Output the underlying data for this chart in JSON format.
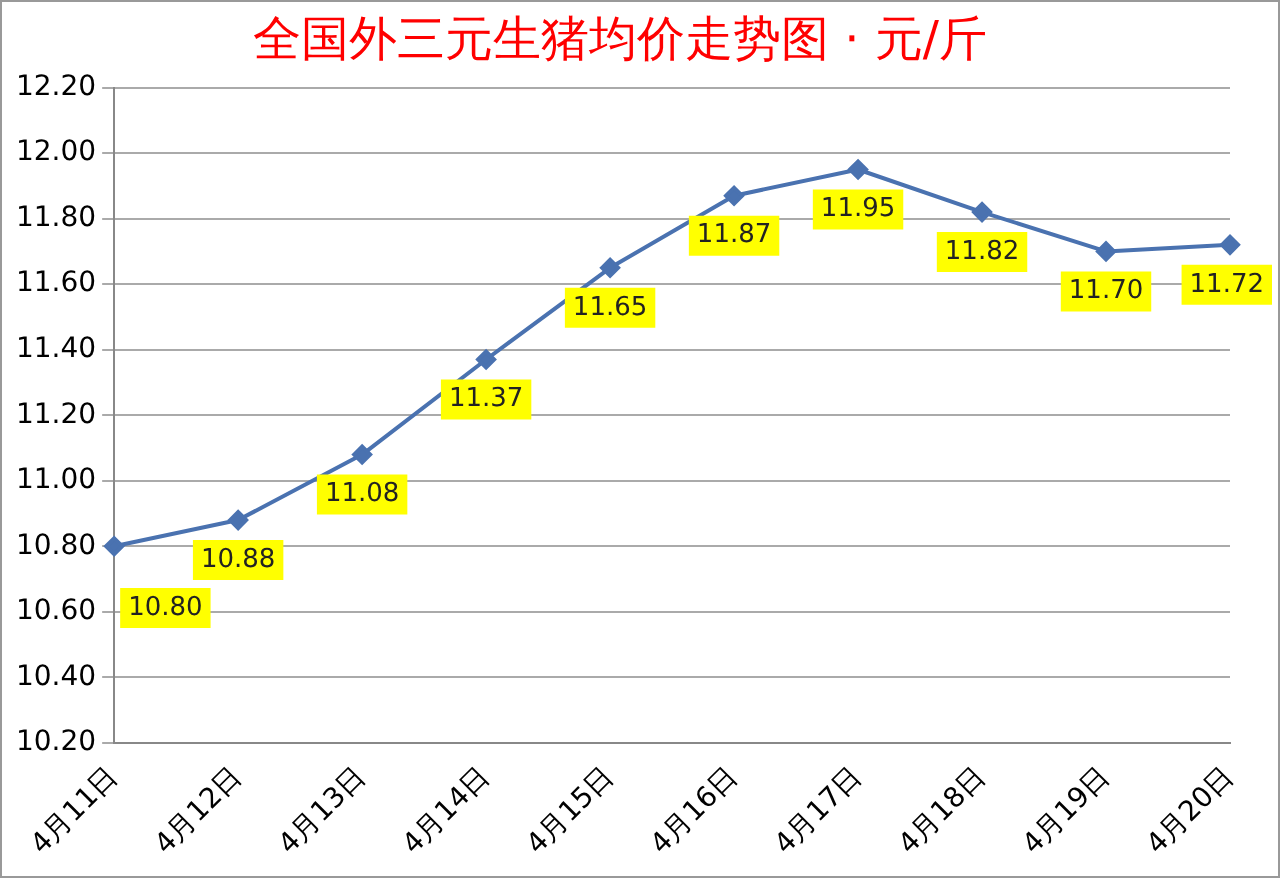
{
  "chart_data": {
    "type": "line",
    "title": "全国外三元生猪均价走势图 · 元/斤",
    "categories": [
      "4月11日",
      "4月12日",
      "4月13日",
      "4月14日",
      "4月15日",
      "4月16日",
      "4月17日",
      "4月18日",
      "4月19日",
      "4月20日"
    ],
    "values": [
      10.8,
      10.88,
      11.08,
      11.37,
      11.65,
      11.87,
      11.95,
      11.82,
      11.7,
      11.72
    ],
    "value_labels": [
      "10.80",
      "10.88",
      "11.08",
      "11.37",
      "11.65",
      "11.87",
      "11.95",
      "11.82",
      "11.70",
      "11.72"
    ],
    "color": "#4a72b0",
    "marker": "diamond",
    "ylim": [
      10.2,
      12.2
    ],
    "yticks": [
      {
        "value": 10.2,
        "label": "10.20"
      },
      {
        "value": 10.4,
        "label": "10.40"
      },
      {
        "value": 10.6,
        "label": "10.60"
      },
      {
        "value": 10.8,
        "label": "10.80"
      },
      {
        "value": 11.0,
        "label": "11.00"
      },
      {
        "value": 11.2,
        "label": "11.20"
      },
      {
        "value": 11.4,
        "label": "11.40"
      },
      {
        "value": 11.6,
        "label": "11.60"
      },
      {
        "value": 11.8,
        "label": "11.80"
      },
      {
        "value": 12.0,
        "label": "12.00"
      },
      {
        "value": 12.2,
        "label": "12.20"
      }
    ],
    "grid": "y",
    "legend": false
  }
}
